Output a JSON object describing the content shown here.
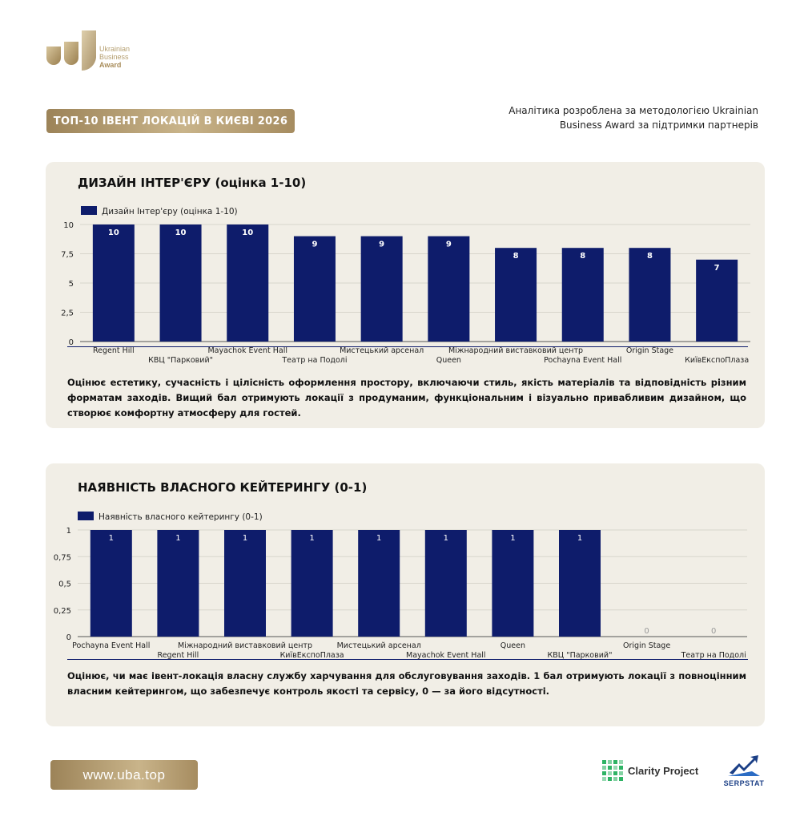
{
  "brand": {
    "logo_line1": "Ukrainian",
    "logo_line2": "Business",
    "logo_line3": "Award",
    "gold": "#b59e6f"
  },
  "header": {
    "title": "ТОП-10 ІВЕНТ ЛОКАЦІЙ В КИЄВІ 2026",
    "note": "Аналітика розроблена за методологією Ukrainian Business Award за підтримки партнерів"
  },
  "section1": {
    "heading": "ДИЗАЙН ІНТЕР'ЄРУ (оцінка 1-10)",
    "description": "Оцінює естетику, сучасність і цілісність оформлення простору, включаючи стиль, якість матеріалів та відповідність різним форматам заходів. Вищий бал отримують локації з продуманим, функціональним і візуально привабливим дизайном, що створює комфортну атмосферу для гостей."
  },
  "section2": {
    "heading": "НАЯВНІСТЬ ВЛАСНОГО КЕЙТЕРИНГУ (0-1)",
    "description": "Оцінює, чи має івент-локація власну службу харчування для обслуговування заходів. 1 бал отримують локації з повноцінним власним кейтерингом, що забезпечує контроль якості та сервісу, 0 — за його відсутності."
  },
  "chart_data": [
    {
      "type": "bar",
      "series": [
        {
          "name": "Дизайн Інтер'єру (оцінка 1-10)",
          "color": "#0e1c6b"
        }
      ],
      "categories": [
        "Regent Hill",
        "КВЦ \"Парковий\"",
        "Mayachok Event Hall",
        "Театр на Подолі",
        "Мистецький арсенал",
        "Queen",
        "Міжнародний виставковий центр",
        "Pochayna Event Hall",
        "Origin Stage",
        "КиївЕкспоПлаза"
      ],
      "values": [
        10,
        10,
        10,
        9,
        9,
        9,
        8,
        8,
        8,
        7
      ],
      "ylim": [
        0,
        10
      ],
      "yticks": [
        "0",
        "2,5",
        "5",
        "7,5",
        "10"
      ],
      "legend": "top-left",
      "grid": true
    },
    {
      "type": "bar",
      "series": [
        {
          "name": "Наявність власного кейтерингу (0-1)",
          "color": "#0e1c6b"
        }
      ],
      "categories": [
        "Pochayna Event Hall",
        "Regent Hill",
        "Міжнародний виставковий центр",
        "КиївЕкспоПлаза",
        "Мистецький арсенал",
        "Mayachok Event Hall",
        "Queen",
        "КВЦ \"Парковий\"",
        "Origin Stage",
        "Театр на Подолі"
      ],
      "values": [
        1,
        1,
        1,
        1,
        1,
        1,
        1,
        1,
        0,
        0
      ],
      "ylim": [
        0,
        1
      ],
      "yticks": [
        "0",
        "0,25",
        "0,5",
        "0,75",
        "1"
      ],
      "legend": "top-left",
      "grid": true
    }
  ],
  "footer": {
    "url": "www.uba.top",
    "partner1": "Clarity Project",
    "partner2": "SERPSTAT"
  }
}
